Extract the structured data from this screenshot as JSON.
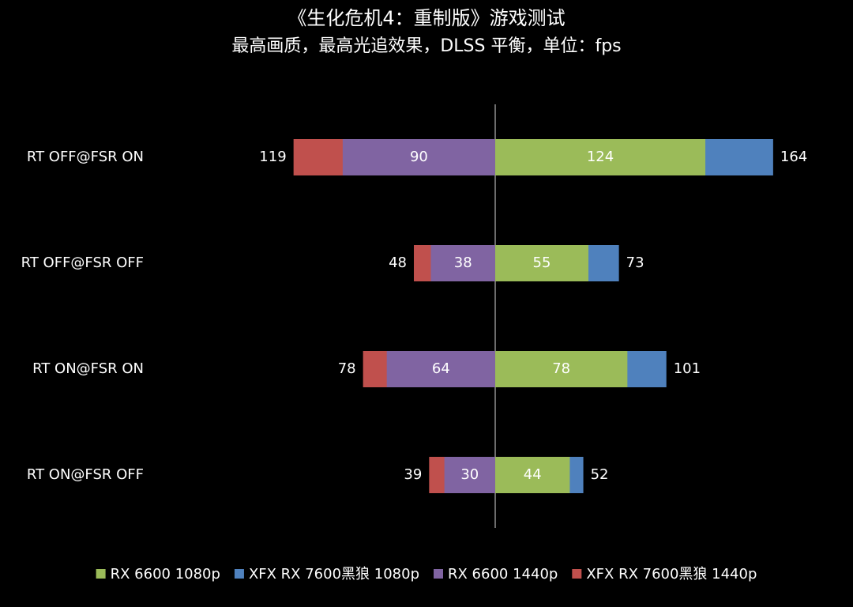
{
  "chart_data": {
    "type": "diverging-bar",
    "title": "《生化危机4：重制版》游戏测试",
    "subtitle": "最高画质，最高光追效果，DLSS 平衡，单位：fps",
    "categories": [
      "RT OFF@FSR ON",
      "RT OFF@FSR OFF",
      "RT ON@FSR ON",
      "RT ON@FSR OFF"
    ],
    "xlim": [
      0,
      206
    ],
    "series": [
      {
        "name": "RX 6600 1080p",
        "color": "#9bbb59",
        "side": "right",
        "label_position": "inside",
        "values": [
          124,
          55,
          78,
          44
        ]
      },
      {
        "name": "XFX RX 7600黑狼 1080p",
        "color": "#4f81bd",
        "side": "right",
        "label_position": "outside",
        "values": [
          164,
          73,
          101,
          52
        ]
      },
      {
        "name": "RX 6600 1440p",
        "color": "#8064a2",
        "side": "left",
        "label_position": "inside",
        "values": [
          90,
          38,
          64,
          30
        ]
      },
      {
        "name": "XFX RX 7600黑狼 1440p",
        "color": "#c0504d",
        "side": "left",
        "label_position": "outside",
        "values": [
          119,
          48,
          78,
          39
        ]
      }
    ],
    "legend": "bottom"
  }
}
